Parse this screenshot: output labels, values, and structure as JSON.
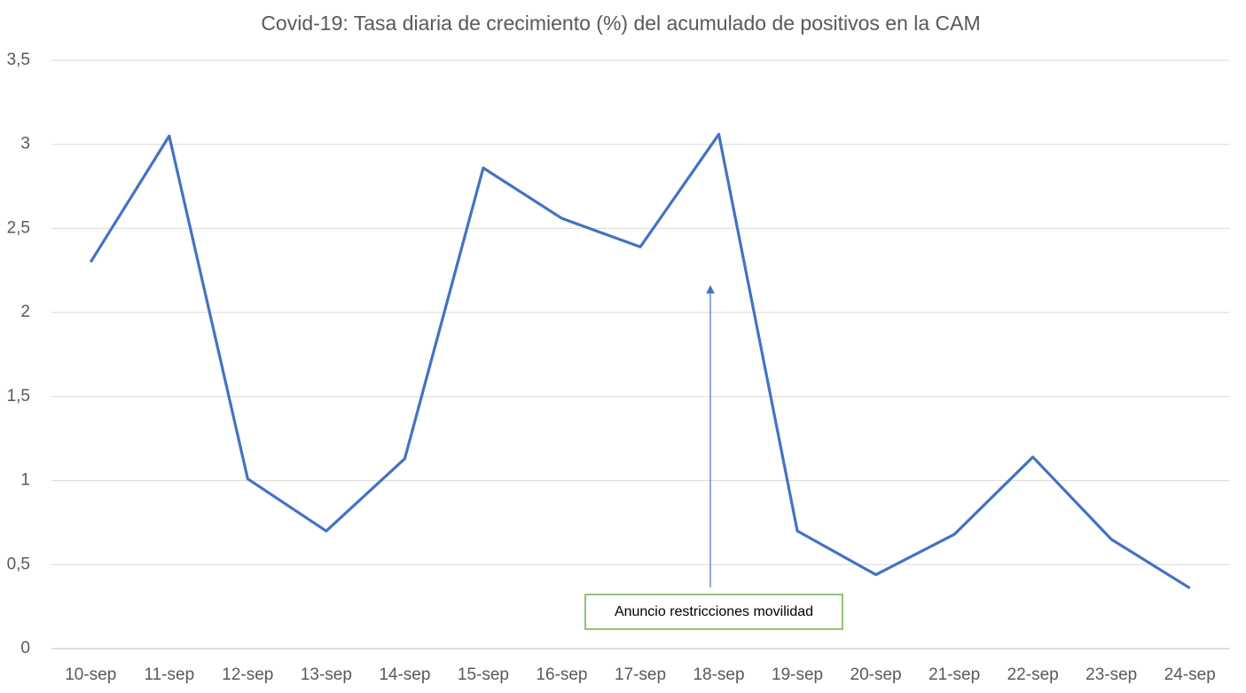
{
  "chart_data": {
    "type": "line",
    "title": "Covid-19: Tasa diaria de crecimiento (%) del acumulado de positivos en la CAM",
    "categories": [
      "10-sep",
      "11-sep",
      "12-sep",
      "13-sep",
      "14-sep",
      "15-sep",
      "16-sep",
      "17-sep",
      "18-sep",
      "19-sep",
      "20-sep",
      "21-sep",
      "22-sep",
      "23-sep",
      "24-sep"
    ],
    "values": [
      2.3,
      3.05,
      1.01,
      0.7,
      1.13,
      2.86,
      2.56,
      2.39,
      3.06,
      0.7,
      0.44,
      0.68,
      1.14,
      0.65,
      0.36
    ],
    "color": "#4472c4",
    "ylim": [
      0,
      3.5
    ],
    "yticks": [
      0,
      {
        "value": 0.5,
        "label": "0,5"
      },
      1,
      {
        "value": 1.5,
        "label": "1,5"
      },
      2,
      {
        "value": 2.5,
        "label": "2,5"
      },
      3,
      {
        "value": 3.5,
        "label": "3,5"
      }
    ],
    "grid": true,
    "annotations": [
      {
        "text": "Anuncio restricciones movilidad"
      }
    ]
  }
}
